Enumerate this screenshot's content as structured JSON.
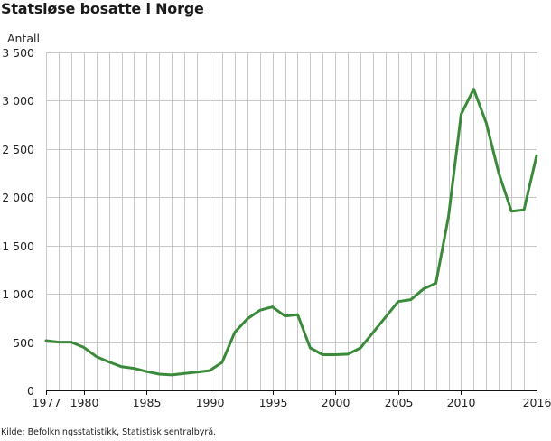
{
  "chart_data": {
    "type": "line",
    "title": "Statsløse bosatte i Norge",
    "ylabel": "Antall",
    "xlabel": "",
    "source": "Kilde: Befolkningsstatistikk, Statistisk sentralbyrå.",
    "xlim": [
      1977,
      2016
    ],
    "ylim": [
      0,
      3500
    ],
    "xticks": [
      1977,
      1980,
      1985,
      1990,
      1995,
      2000,
      2005,
      2010,
      2016
    ],
    "xtick_labels": [
      "1977",
      "1980",
      "1985",
      "1990",
      "1995",
      "2000",
      "2005",
      "2010",
      "2016"
    ],
    "yticks": [
      0,
      500,
      1000,
      1500,
      2000,
      2500,
      3000,
      3500
    ],
    "ytick_labels": [
      "0",
      "500",
      "1 000",
      "1 500",
      "2 000",
      "2 500",
      "3 000",
      "3 500"
    ],
    "grid": "vertical gridlines every year, horizontal gridlines every 500",
    "line_color": "#3a8a3a",
    "grid_color": "#c8c8c8",
    "x": [
      1977,
      1978,
      1979,
      1980,
      1981,
      1982,
      1983,
      1984,
      1985,
      1986,
      1987,
      1988,
      1989,
      1990,
      1991,
      1992,
      1993,
      1994,
      1995,
      1996,
      1997,
      1998,
      1999,
      2000,
      2001,
      2002,
      2003,
      2004,
      2005,
      2006,
      2007,
      2008,
      2009,
      2010,
      2011,
      2012,
      2013,
      2014,
      2015,
      2016
    ],
    "series": [
      {
        "values": [
          515,
          500,
          500,
          445,
          350,
          295,
          245,
          228,
          195,
          168,
          160,
          175,
          190,
          205,
          290,
          600,
          740,
          830,
          865,
          770,
          785,
          440,
          370,
          370,
          375,
          440,
          600,
          760,
          920,
          940,
          1050,
          1110,
          1800,
          2860,
          3120,
          2770,
          2250,
          1855,
          1870,
          2430
        ]
      }
    ]
  }
}
